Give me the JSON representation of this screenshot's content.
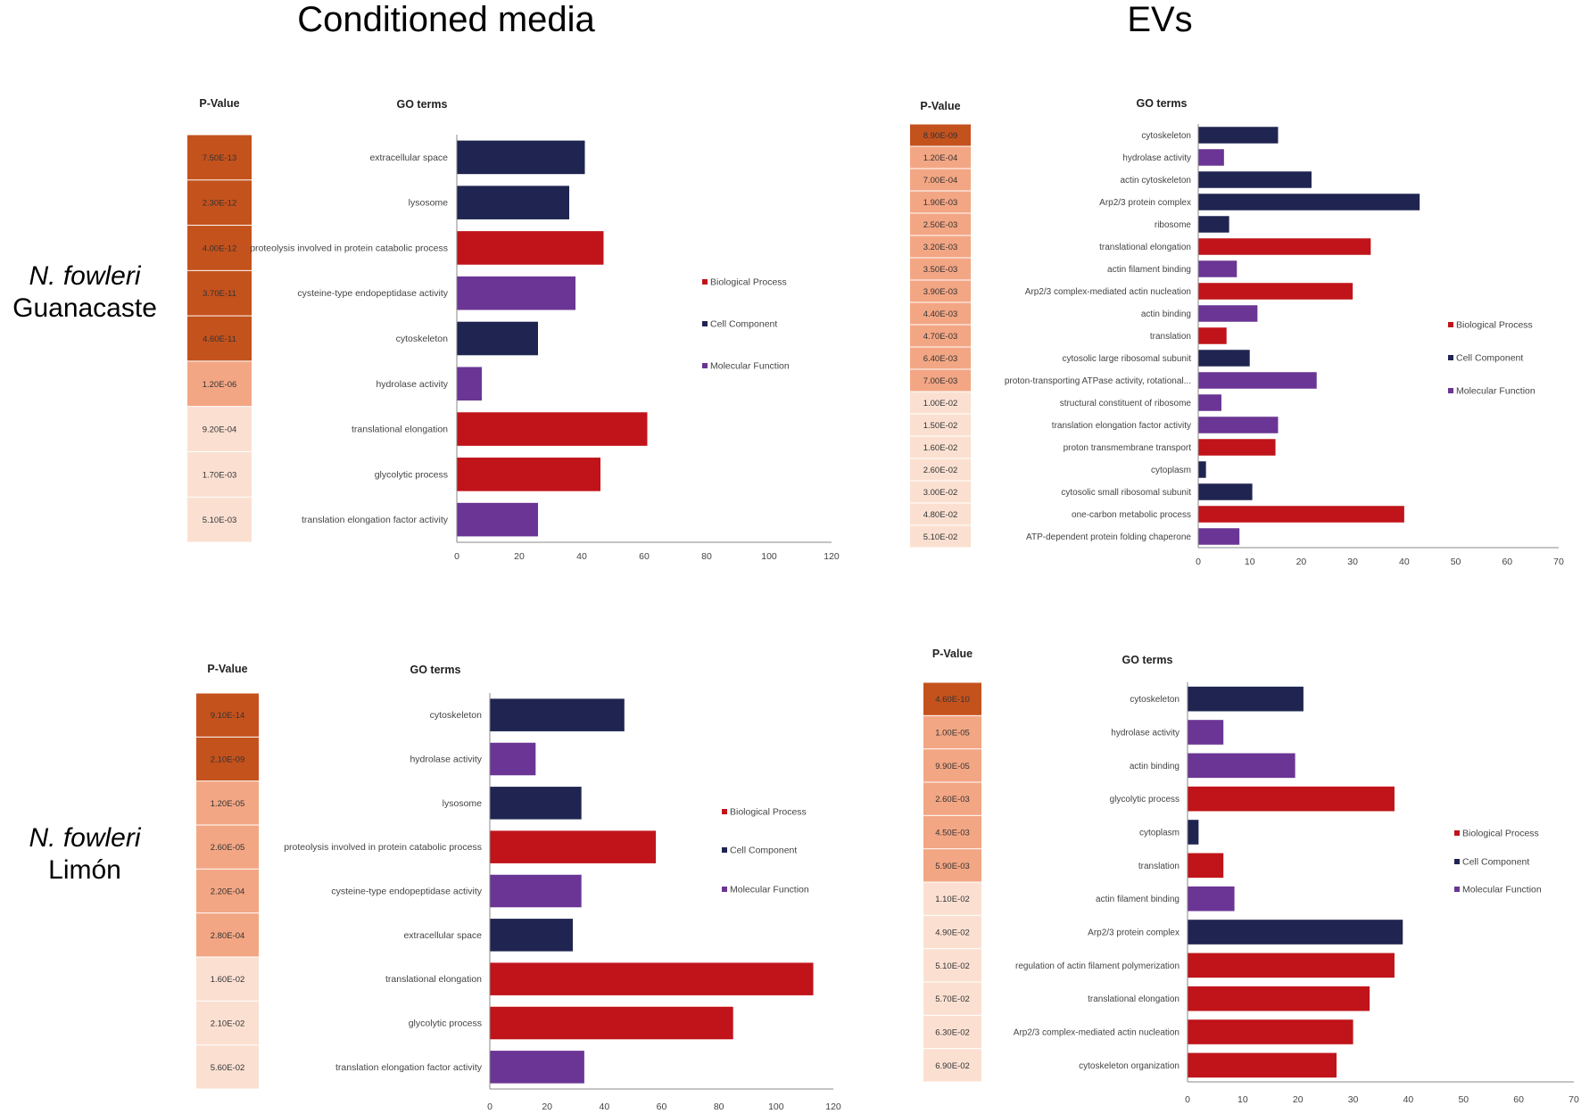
{
  "headers": {
    "conditioned_media": "Conditioned media",
    "evs": "EVs"
  },
  "row_labels": [
    {
      "italic": "N. fowleri",
      "plain": "Guanacaste"
    },
    {
      "italic": "N. fowleri",
      "plain": "Limón"
    }
  ],
  "colors": {
    "biological_process": "#c0141a",
    "cell_component": "#1f2550",
    "molecular_function": "#6a3594",
    "pvalue_dark": "#c4521d",
    "pvalue_mid": "#f3a684",
    "pvalue_light": "#fbe0d2"
  },
  "chart_data": [
    {
      "id": "cm-guanacaste",
      "type": "bar",
      "orientation": "horizontal",
      "pvalue_title": "P-Value",
      "terms_title": "GO terms",
      "xlim": [
        0,
        120
      ],
      "xticks": [
        "0",
        "20",
        "40",
        "60",
        "80",
        "100",
        "120"
      ],
      "legend": [
        "Biological Process",
        "Cell Component",
        "Molecular Function"
      ],
      "categories": [
        "extracellular space",
        "lysosome",
        "proteolysis involved in protein catabolic process",
        "cysteine-type endopeptidase activity",
        "cytoskeleton",
        "hydrolase activity",
        "translational elongation",
        "glycolytic process",
        "translation elongation factor activity"
      ],
      "values": [
        41,
        36,
        47,
        38,
        26,
        8,
        61,
        46,
        26
      ],
      "groups": [
        "cell_component",
        "cell_component",
        "biological_process",
        "molecular_function",
        "cell_component",
        "molecular_function",
        "biological_process",
        "biological_process",
        "molecular_function"
      ],
      "pvalues": [
        "7.50E-13",
        "2.30E-12",
        "4.00E-12",
        "3.70E-11",
        "4.60E-11",
        "1.20E-06",
        "9.20E-04",
        "1.70E-03",
        "5.10E-03"
      ],
      "pshade": [
        "dark",
        "dark",
        "dark",
        "dark",
        "dark",
        "mid",
        "light",
        "light",
        "light"
      ]
    },
    {
      "id": "ev-guanacaste",
      "type": "bar",
      "orientation": "horizontal",
      "pvalue_title": "P-Value",
      "terms_title": "GO terms",
      "xlim": [
        0,
        70
      ],
      "xticks": [
        "0",
        "10",
        "20",
        "30",
        "40",
        "50",
        "60",
        "70"
      ],
      "legend": [
        "Biological Process",
        "Cell Component",
        "Molecular Function"
      ],
      "categories": [
        "cytoskeleton",
        "hydrolase activity",
        "actin cytoskeleton",
        "Arp2/3 protein complex",
        "ribosome",
        "translational elongation",
        "actin filament binding",
        "Arp2/3 complex-mediated actin nucleation",
        "actin binding",
        "translation",
        "cytosolic large ribosomal subunit",
        "proton-transporting ATPase activity, rotational...",
        "structural constituent of ribosome",
        "translation elongation factor activity",
        "proton transmembrane transport",
        "cytoplasm",
        "cytosolic small ribosomal subunit",
        "one-carbon metabolic process",
        "ATP-dependent protein folding chaperone"
      ],
      "values": [
        15.5,
        5,
        22,
        43,
        6,
        33.5,
        7.5,
        30,
        11.5,
        5.5,
        10,
        23,
        4.5,
        15.5,
        15,
        1.5,
        10.5,
        40,
        8
      ],
      "groups": [
        "cell_component",
        "molecular_function",
        "cell_component",
        "cell_component",
        "cell_component",
        "biological_process",
        "molecular_function",
        "biological_process",
        "molecular_function",
        "biological_process",
        "cell_component",
        "molecular_function",
        "molecular_function",
        "molecular_function",
        "biological_process",
        "cell_component",
        "cell_component",
        "biological_process",
        "molecular_function"
      ],
      "pvalues": [
        "8.90E-09",
        "1.20E-04",
        "7.00E-04",
        "1.90E-03",
        "2.50E-03",
        "3.20E-03",
        "3.50E-03",
        "3.90E-03",
        "4.40E-03",
        "4.70E-03",
        "6.40E-03",
        "7.00E-03",
        "1.00E-02",
        "1.50E-02",
        "1.60E-02",
        "2.60E-02",
        "3.00E-02",
        "4.80E-02",
        "5.10E-02"
      ],
      "pshade": [
        "dark",
        "mid",
        "mid",
        "mid",
        "mid",
        "mid",
        "mid",
        "mid",
        "mid",
        "mid",
        "mid",
        "mid",
        "light",
        "light",
        "light",
        "light",
        "light",
        "light",
        "light"
      ]
    },
    {
      "id": "cm-limon",
      "type": "bar",
      "orientation": "horizontal",
      "pvalue_title": "P-Value",
      "terms_title": "GO terms",
      "xlim": [
        0,
        120
      ],
      "xticks": [
        "0",
        "20",
        "40",
        "60",
        "80",
        "100",
        "120"
      ],
      "legend": [
        "Biological Process",
        "Cell Component",
        "Molecular Function"
      ],
      "categories": [
        "cytoskeleton",
        "hydrolase activity",
        "lysosome",
        "proteolysis involved in protein catabolic process",
        "cysteine-type endopeptidase activity",
        "extracellular space",
        "translational elongation",
        "glycolytic process",
        "translation elongation factor activity"
      ],
      "values": [
        47,
        16,
        32,
        58,
        32,
        29,
        113,
        85,
        33
      ],
      "groups": [
        "cell_component",
        "molecular_function",
        "cell_component",
        "biological_process",
        "molecular_function",
        "cell_component",
        "biological_process",
        "biological_process",
        "molecular_function"
      ],
      "pvalues": [
        "9.10E-14",
        "2.10E-09",
        "1.20E-05",
        "2.60E-05",
        "2.20E-04",
        "2.80E-04",
        "1.60E-02",
        "2.10E-02",
        "5.60E-02"
      ],
      "pshade": [
        "dark",
        "dark",
        "mid",
        "mid",
        "mid",
        "mid",
        "light",
        "light",
        "light"
      ]
    },
    {
      "id": "ev-limon",
      "type": "bar",
      "orientation": "horizontal",
      "pvalue_title": "P-Value",
      "terms_title": "GO terms",
      "xlim": [
        0,
        70
      ],
      "xticks": [
        "0",
        "10",
        "20",
        "30",
        "40",
        "50",
        "60",
        "70"
      ],
      "legend": [
        "Biological Process",
        "Cell Component",
        "Molecular Function"
      ],
      "categories": [
        "cytoskeleton",
        "hydrolase activity",
        "actin binding",
        "glycolytic process",
        "cytoplasm",
        "translation",
        "actin filament binding",
        "Arp2/3 protein complex",
        "regulation of actin filament polymerization",
        "translational elongation",
        "Arp2/3 complex-mediated actin nucleation",
        "cytoskeleton organization"
      ],
      "values": [
        21,
        6.5,
        19.5,
        37.5,
        2,
        6.5,
        8.5,
        39,
        37.5,
        33,
        30,
        27
      ],
      "groups": [
        "cell_component",
        "molecular_function",
        "molecular_function",
        "biological_process",
        "cell_component",
        "biological_process",
        "molecular_function",
        "cell_component",
        "biological_process",
        "biological_process",
        "biological_process",
        "biological_process"
      ],
      "pvalues": [
        "4.60E-10",
        "1.00E-05",
        "9.90E-05",
        "2.60E-03",
        "4.50E-03",
        "5.90E-03",
        "1.10E-02",
        "4.90E-02",
        "5.10E-02",
        "5.70E-02",
        "6.30E-02",
        "6.90E-02"
      ],
      "pshade": [
        "dark",
        "mid",
        "mid",
        "mid",
        "mid",
        "mid",
        "light",
        "light",
        "light",
        "light",
        "light",
        "light"
      ]
    }
  ]
}
